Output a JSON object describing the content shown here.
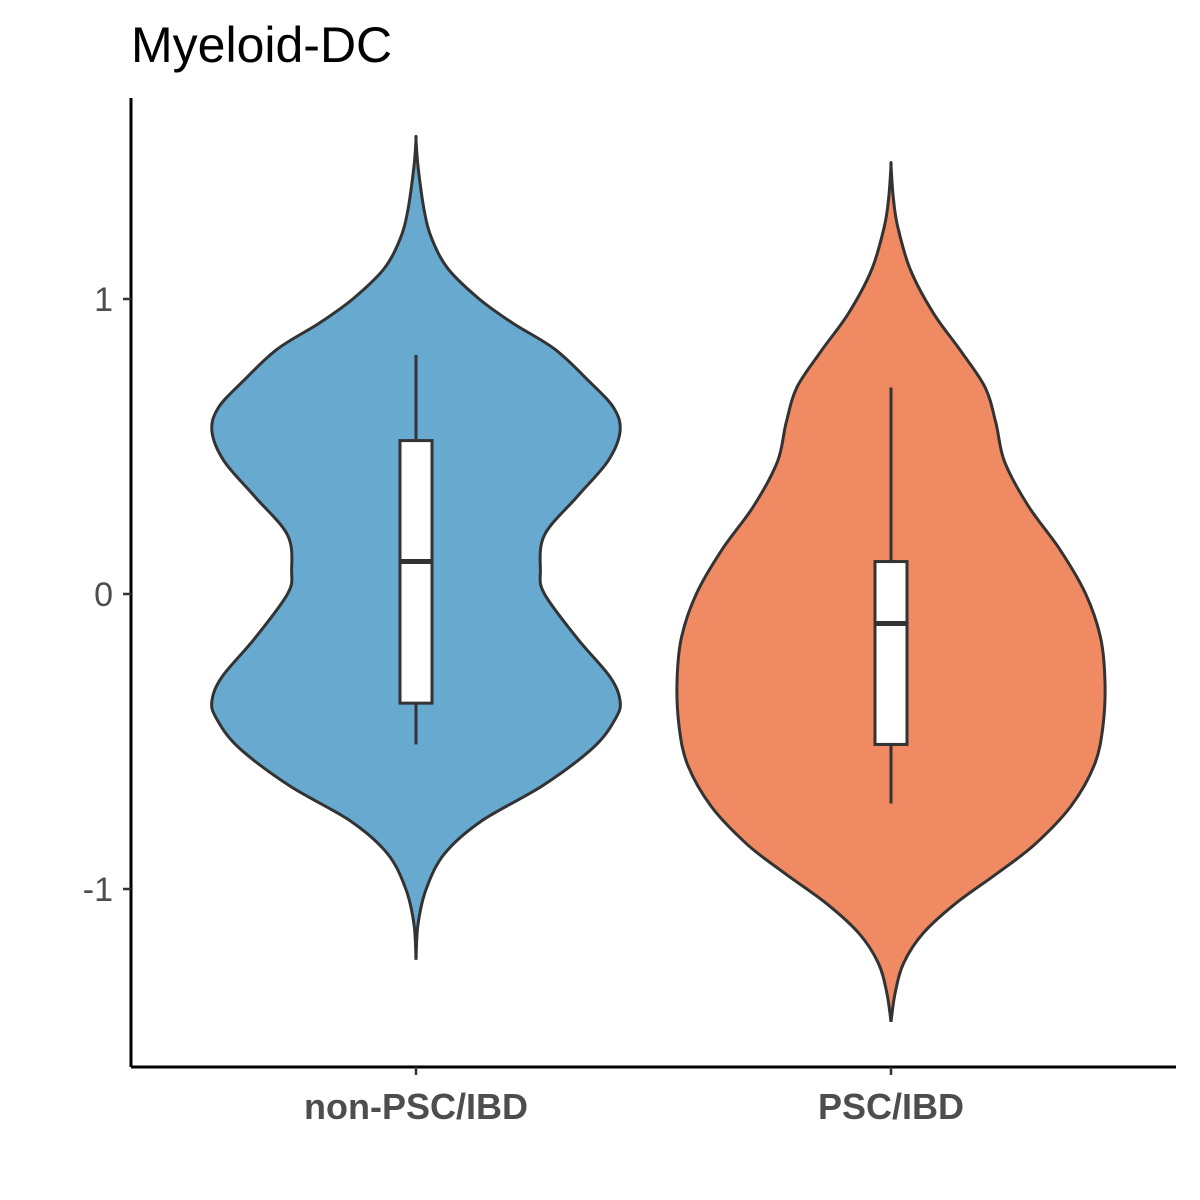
{
  "chart_data": {
    "type": "violin",
    "title": "Myeloid-DC",
    "xlabel": "",
    "ylabel": "",
    "categories": [
      "non-PSC/IBD",
      "PSC/IBD"
    ],
    "yticks": [
      "-1",
      "0",
      "1"
    ],
    "ylim": [
      -1.55,
      1.75
    ],
    "grid": false,
    "legend": "none",
    "series": [
      {
        "category": "non-PSC/IBD",
        "color": "#67a9cf",
        "range": [
          -1.24,
          1.54
        ],
        "density": [
          [
            -1.24,
            0.0
          ],
          [
            -1.12,
            0.01
          ],
          [
            -1.0,
            0.05
          ],
          [
            -0.88,
            0.14
          ],
          [
            -0.77,
            0.32
          ],
          [
            -0.65,
            0.62
          ],
          [
            -0.52,
            0.87
          ],
          [
            -0.42,
            0.98
          ],
          [
            -0.36,
            1.0
          ],
          [
            -0.28,
            0.95
          ],
          [
            -0.15,
            0.79
          ],
          [
            0.0,
            0.63
          ],
          [
            0.08,
            0.61
          ],
          [
            0.2,
            0.63
          ],
          [
            0.33,
            0.79
          ],
          [
            0.45,
            0.94
          ],
          [
            0.55,
            1.0
          ],
          [
            0.63,
            0.97
          ],
          [
            0.72,
            0.85
          ],
          [
            0.83,
            0.68
          ],
          [
            0.92,
            0.47
          ],
          [
            1.0,
            0.31
          ],
          [
            1.1,
            0.16
          ],
          [
            1.2,
            0.08
          ],
          [
            1.3,
            0.04
          ],
          [
            1.45,
            0.01
          ],
          [
            1.54,
            0.0
          ]
        ],
        "box": {
          "whisker_low": -0.51,
          "q1": -0.37,
          "median": 0.11,
          "q3": 0.52,
          "whisker_high": 0.81
        }
      },
      {
        "category": "PSC/IBD",
        "color": "#ef8a62",
        "range": [
          -1.45,
          1.45
        ],
        "density": [
          [
            -1.45,
            0.0
          ],
          [
            -1.35,
            0.02
          ],
          [
            -1.25,
            0.06
          ],
          [
            -1.15,
            0.15
          ],
          [
            -1.05,
            0.3
          ],
          [
            -0.95,
            0.49
          ],
          [
            -0.85,
            0.67
          ],
          [
            -0.72,
            0.84
          ],
          [
            -0.58,
            0.95
          ],
          [
            -0.45,
            0.99
          ],
          [
            -0.3,
            1.0
          ],
          [
            -0.15,
            0.98
          ],
          [
            0.0,
            0.91
          ],
          [
            0.15,
            0.79
          ],
          [
            0.3,
            0.64
          ],
          [
            0.45,
            0.53
          ],
          [
            0.58,
            0.49
          ],
          [
            0.7,
            0.44
          ],
          [
            0.82,
            0.33
          ],
          [
            0.95,
            0.2
          ],
          [
            1.1,
            0.09
          ],
          [
            1.25,
            0.03
          ],
          [
            1.35,
            0.01
          ],
          [
            1.45,
            0.0
          ]
        ],
        "box": {
          "whisker_low": -0.71,
          "q1": -0.51,
          "median": -0.1,
          "q3": 0.11,
          "whisker_high": 0.7
        }
      }
    ]
  }
}
